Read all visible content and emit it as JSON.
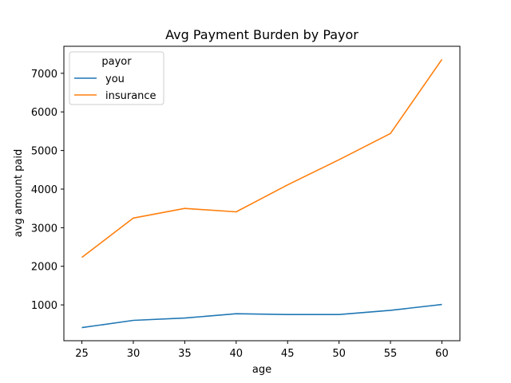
{
  "chart_data": {
    "type": "line",
    "title": "Avg Payment Burden by Payor",
    "xlabel": "age",
    "ylabel": "avg amount paid",
    "x": [
      25,
      30,
      35,
      40,
      45,
      50,
      55,
      60
    ],
    "xlim": [
      23.25,
      61.75
    ],
    "ylim": [
      72,
      7700
    ],
    "xticks": [
      "25",
      "30",
      "35",
      "40",
      "45",
      "50",
      "55",
      "60"
    ],
    "yticks": [
      "1000",
      "2000",
      "3000",
      "4000",
      "5000",
      "6000",
      "7000"
    ],
    "legend": {
      "title": "payor",
      "position": "upper-left"
    },
    "grid": false,
    "series": [
      {
        "name": "you",
        "color": "#1f77b4",
        "values": [
          410,
          600,
          660,
          770,
          750,
          750,
          860,
          1010
        ]
      },
      {
        "name": "insurance",
        "color": "#ff7f0e",
        "values": [
          2230,
          3250,
          3500,
          3410,
          4110,
          4760,
          5440,
          7360
        ]
      }
    ]
  }
}
